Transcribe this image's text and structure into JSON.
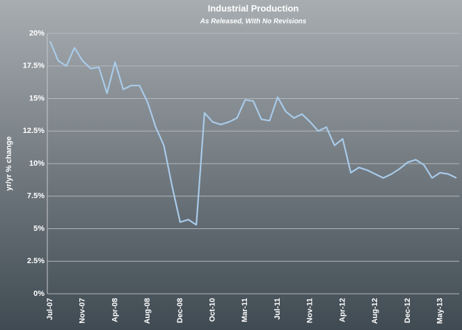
{
  "chart_data": {
    "type": "line",
    "title": "Industrial Production",
    "subtitle": "As Released, With No Revisions",
    "y_label": "yr/yr % change",
    "categories": [
      "Jul-07",
      null,
      null,
      null,
      "Nov-07",
      null,
      null,
      null,
      "Apr-08",
      null,
      null,
      null,
      "Aug-08",
      null,
      null,
      null,
      "Dec-08",
      null,
      null,
      null,
      "Oct-10",
      null,
      null,
      null,
      "Mar-11",
      null,
      null,
      null,
      "Jul-11",
      null,
      null,
      null,
      "Nov-11",
      null,
      null,
      null,
      "Apr-12",
      null,
      null,
      null,
      "Aug-12",
      null,
      null,
      null,
      "Dec-12",
      null,
      null,
      null,
      "May-13",
      null,
      null
    ],
    "series": [
      {
        "name": "Industrial Production",
        "color": "#a9cbea",
        "values": [
          19.4,
          17.9,
          17.5,
          18.9,
          17.9,
          17.3,
          17.4,
          15.4,
          17.8,
          15.7,
          16.0,
          16.0,
          14.7,
          12.8,
          11.4,
          8.3,
          5.5,
          5.7,
          5.3,
          13.9,
          13.2,
          13.0,
          13.2,
          13.5,
          14.9,
          14.8,
          13.4,
          13.3,
          15.1,
          14.0,
          13.5,
          13.8,
          13.2,
          12.5,
          12.8,
          11.4,
          11.9,
          9.3,
          9.7,
          9.5,
          9.2,
          8.9,
          9.2,
          9.6,
          10.1,
          10.3,
          9.9,
          8.9,
          9.3,
          9.2,
          8.9
        ]
      }
    ],
    "ylim": [
      0,
      20
    ],
    "yticks": [
      {
        "value": 0,
        "label": "0%"
      },
      {
        "value": 2.5,
        "label": "2.5%"
      },
      {
        "value": 5,
        "label": "5%"
      },
      {
        "value": 7.5,
        "label": "7.5%"
      },
      {
        "value": 10,
        "label": "10%"
      },
      {
        "value": 12.5,
        "label": "12.5%"
      },
      {
        "value": 15,
        "label": "15%"
      },
      {
        "value": 17.5,
        "label": "17.5%"
      },
      {
        "value": 20,
        "label": "20%"
      }
    ],
    "grid": true
  }
}
